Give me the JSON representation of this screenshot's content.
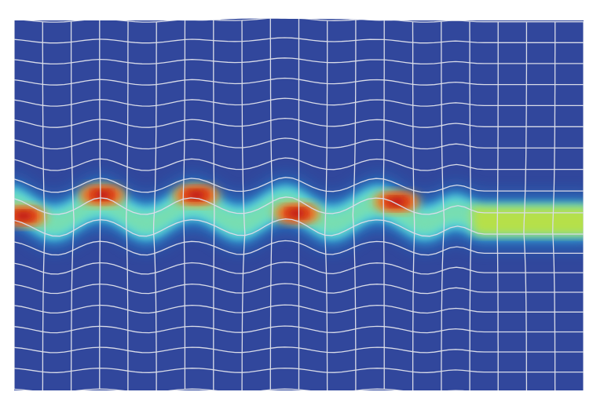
{
  "figure": {
    "kind": "finite-element contour plot of a buckled layer embedded in a deformed mesh",
    "colors": {
      "background": "#ffffff",
      "matrix": "#31479c",
      "mesh_lines": "#d9dce8",
      "contour_scale": [
        "#1e8fd6",
        "#4fd3e6",
        "#7fe0a8",
        "#b6e04a",
        "#f2e21e",
        "#f59a1c",
        "#e8341c",
        "#b0120e"
      ]
    },
    "mesh": {
      "columns": 20,
      "rows": 18
    },
    "layer": {
      "fold_count": 5,
      "hotspot_colors": [
        "red",
        "red",
        "red",
        "red",
        "red"
      ],
      "right_end_color": "yellow-green"
    }
  }
}
